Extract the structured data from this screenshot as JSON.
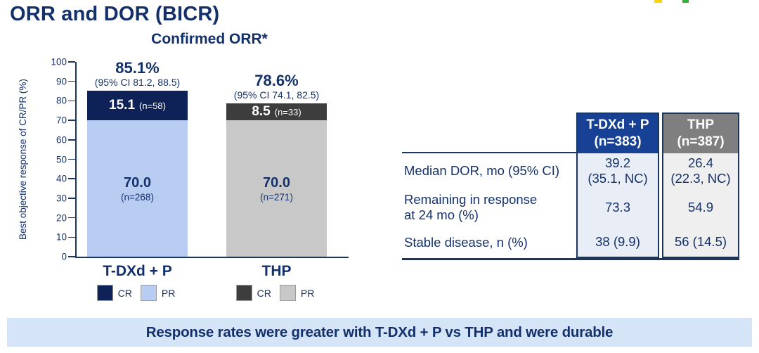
{
  "slide": {
    "title": "ORR and DOR (BICR)",
    "banner": "Response rates were greater with T-DXd + P vs THP and were durable"
  },
  "logo_fragments": {
    "colors": [
      "#ffd400",
      "#34b233"
    ]
  },
  "colors": {
    "navy_text": "#13306b",
    "axis": "#1a355e",
    "banner_bg": "#d6e4f8",
    "table_header_blue": "#164194",
    "table_header_gray": "#7f7f7f",
    "table_cell_blue_bg": "#e9edf5",
    "table_cell_gray_bg": "#efefef"
  },
  "chart_data": {
    "type": "bar",
    "stacked": true,
    "title": "Confirmed ORR*",
    "ylabel": "Best objective response of CR/PR (%)",
    "xlabel": "",
    "ylim": [
      0,
      100
    ],
    "ytick_step": 10,
    "grid": false,
    "legend_position": "below-each-group",
    "groups": [
      {
        "label": "T-DXd + P",
        "total_value": 85.1,
        "total_pct_label": "85.1%",
        "ci_label": "(95% CI 81.2, 88.5)",
        "segments": [
          {
            "name": "CR",
            "value": 15.1,
            "value_label": "15.1",
            "n_label": "(n=58)",
            "color": "#0e2258",
            "label_color": "#ffffff",
            "label_style": "inline"
          },
          {
            "name": "PR",
            "value": 70.0,
            "value_label": "70.0",
            "n_label": "(n=268)",
            "color": "#b9cdf3",
            "label_color": "#14316b",
            "label_style": "stacked"
          }
        ],
        "legend": [
          {
            "label": "CR",
            "color": "#0e2258"
          },
          {
            "label": "PR",
            "color": "#b9cdf3"
          }
        ]
      },
      {
        "label": "THP",
        "total_value": 78.6,
        "total_pct_label": "78.6%",
        "ci_label": "(95% CI 74.1, 82.5)",
        "segments": [
          {
            "name": "CR",
            "value": 8.5,
            "value_label": "8.5",
            "n_label": "(n=33)",
            "color": "#3d3d3d",
            "label_color": "#ffffff",
            "label_style": "inline"
          },
          {
            "name": "PR",
            "value": 70.0,
            "value_label": "70.0",
            "n_label": "(n=271)",
            "color": "#c8c8c8",
            "label_color": "#14316b",
            "label_style": "stacked"
          }
        ],
        "legend": [
          {
            "label": "CR",
            "color": "#3d3d3d"
          },
          {
            "label": "PR",
            "color": "#c8c8c8"
          }
        ]
      }
    ]
  },
  "dor_table": {
    "columns": [
      {
        "header": [
          "T-DXd + P",
          "(n=383)"
        ]
      },
      {
        "header": [
          "THP",
          "(n=387)"
        ]
      }
    ],
    "rows": [
      {
        "label_lines": [
          "Median DOR, mo (95% CI)",
          ""
        ],
        "values": [
          [
            "39.2",
            "(35.1, NC)"
          ],
          [
            "26.4",
            "(22.3, NC)"
          ]
        ]
      },
      {
        "label_lines": [
          "Remaining in response",
          "at 24 mo (%)"
        ],
        "values": [
          [
            "73.3",
            ""
          ],
          [
            "54.9",
            ""
          ]
        ]
      },
      {
        "label_lines": [
          "Stable disease, n (%)",
          ""
        ],
        "values": [
          [
            "38 (9.9)",
            ""
          ],
          [
            "56 (14.5)",
            ""
          ]
        ]
      }
    ]
  }
}
